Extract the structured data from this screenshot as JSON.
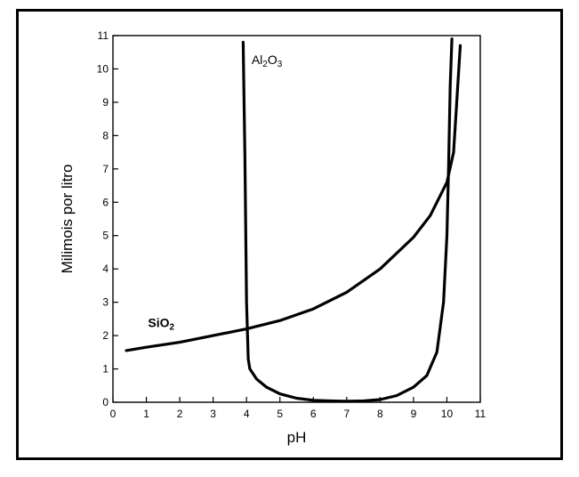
{
  "chart_data": {
    "type": "line",
    "title": "",
    "xlabel": "pH",
    "ylabel": "Milimois por litro",
    "xlim": [
      0,
      11
    ],
    "ylim": [
      0,
      11
    ],
    "xticks": [
      "0",
      "1",
      "2",
      "3",
      "4",
      "5",
      "6",
      "7",
      "8",
      "9",
      "10",
      "11"
    ],
    "yticks": [
      "0",
      "1",
      "2",
      "3",
      "4",
      "5",
      "6",
      "7",
      "8",
      "9",
      "10",
      "11"
    ],
    "grid": false,
    "series": [
      {
        "name": "SiO2",
        "label_parts": [
          "SiO",
          "2"
        ],
        "label_at": [
          1.05,
          2.25
        ],
        "x": [
          0.4,
          1.0,
          2.0,
          3.0,
          4.0,
          5.0,
          6.0,
          7.0,
          8.0,
          9.0,
          9.5,
          10.0,
          10.2,
          10.4
        ],
        "y": [
          1.55,
          1.65,
          1.8,
          2.0,
          2.2,
          2.45,
          2.8,
          3.3,
          4.0,
          4.95,
          5.6,
          6.6,
          7.5,
          10.7
        ]
      },
      {
        "name": "Al2O3",
        "label_parts": [
          "Al",
          "2",
          "O",
          "3"
        ],
        "label_at": [
          4.15,
          10.15
        ],
        "x": [
          3.9,
          3.95,
          4.0,
          4.05,
          4.1,
          4.3,
          4.6,
          5.0,
          5.5,
          6.0,
          6.5,
          7.0,
          7.5,
          8.0,
          8.5,
          9.0,
          9.4,
          9.7,
          9.9,
          10.0,
          10.05,
          10.1,
          10.15
        ],
        "y": [
          10.8,
          7.5,
          3.0,
          1.3,
          1.0,
          0.7,
          0.45,
          0.25,
          0.12,
          0.06,
          0.04,
          0.03,
          0.04,
          0.08,
          0.2,
          0.45,
          0.8,
          1.5,
          3.0,
          5.0,
          7.0,
          9.5,
          10.9
        ]
      }
    ]
  }
}
